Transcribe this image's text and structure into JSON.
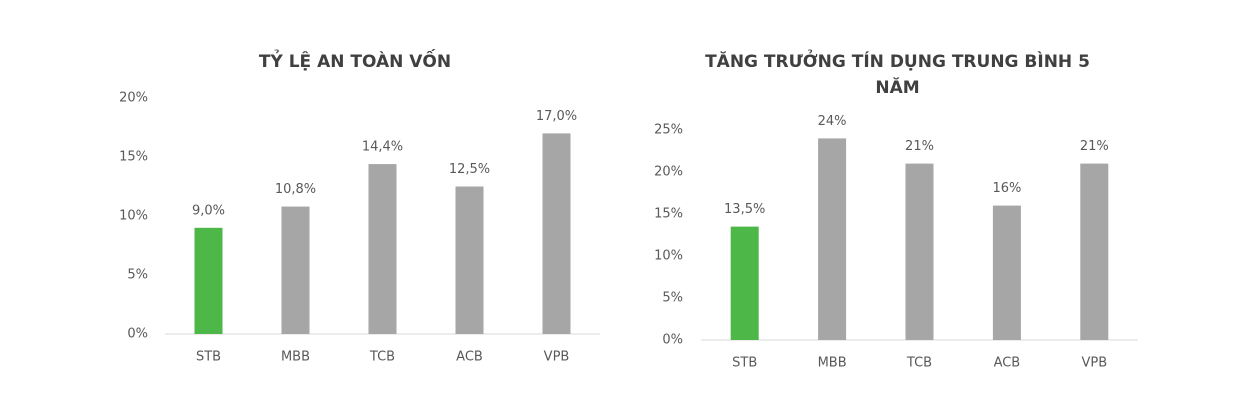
{
  "chart_data": [
    {
      "type": "bar",
      "title": "TỶ LỆ AN TOÀN VỐN",
      "categories": [
        "STB",
        "MBB",
        "TCB",
        "ACB",
        "VPB"
      ],
      "values": [
        9.0,
        10.8,
        14.4,
        12.5,
        17.0
      ],
      "value_labels": [
        "9,0%",
        "10,8%",
        "14,4%",
        "12,5%",
        "17,0%"
      ],
      "colors": [
        "#4db848",
        "#a6a6a6",
        "#a6a6a6",
        "#a6a6a6",
        "#a6a6a6"
      ],
      "ylim": [
        0,
        20
      ],
      "yticks": [
        {
          "value": 0,
          "label": "0%"
        },
        {
          "value": 5,
          "label": "5%"
        },
        {
          "value": 10,
          "label": "10%"
        },
        {
          "value": 15,
          "label": "15%"
        },
        {
          "value": 20,
          "label": "20%"
        }
      ],
      "grid": false
    },
    {
      "type": "bar",
      "title": "TĂNG TRƯỞNG TÍN DỤNG TRUNG BÌNH 5 NĂM",
      "categories": [
        "STB",
        "MBB",
        "TCB",
        "ACB",
        "VPB"
      ],
      "values": [
        13.5,
        24,
        21,
        16,
        21
      ],
      "value_labels": [
        "13,5%",
        "24%",
        "21%",
        "16%",
        "21%"
      ],
      "colors": [
        "#4db848",
        "#a6a6a6",
        "#a6a6a6",
        "#a6a6a6",
        "#a6a6a6"
      ],
      "ylim": [
        0,
        25
      ],
      "yticks": [
        {
          "value": 0,
          "label": "0%"
        },
        {
          "value": 5,
          "label": "5%"
        },
        {
          "value": 10,
          "label": "10%"
        },
        {
          "value": 15,
          "label": "15%"
        },
        {
          "value": 20,
          "label": "20%"
        },
        {
          "value": 25,
          "label": "25%"
        }
      ],
      "grid": false
    }
  ]
}
